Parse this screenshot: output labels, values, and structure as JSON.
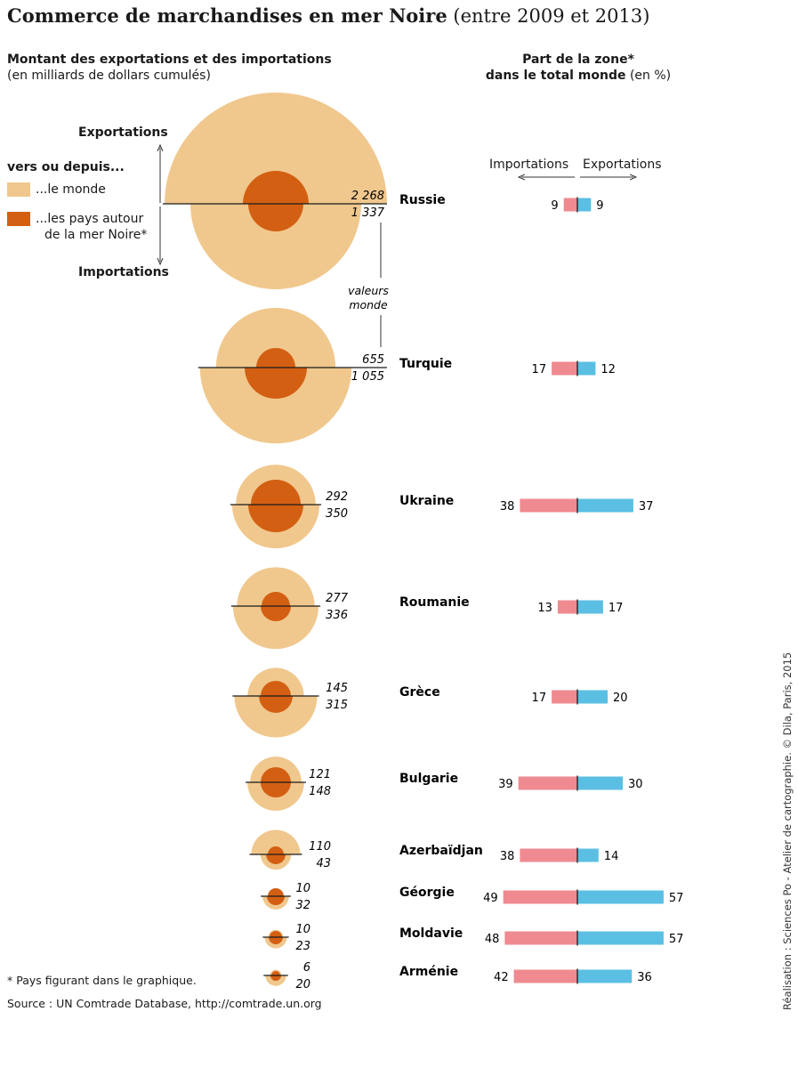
{
  "title": {
    "main": "Commerce de marchandises en mer Noire",
    "sub": "(entre 2009 et 2013)"
  },
  "left_header": {
    "line1": "Montant des exportations et des importations",
    "line2": "(en milliards de dollars cumulés)"
  },
  "right_header": {
    "line1": "Part de la zone*",
    "line2_bold": "dans le total monde",
    "line2_rest": "(en %)"
  },
  "legend": {
    "title": "vers ou depuis...",
    "world": "...le monde",
    "region_line1": "...les pays autour",
    "region_line2": "de la mer Noire*",
    "exports": "Exportations",
    "imports": "Importations",
    "world_values_line1": "valeurs",
    "world_values_line2": "monde"
  },
  "share_axis": {
    "imports": "Importations",
    "exports": "Exportations"
  },
  "colors": {
    "world": "#f0c88d",
    "region": "#d35f13",
    "imports_bar": "#ef8a90",
    "exports_bar": "#5bbfe3"
  },
  "chart_data": {
    "type": "bar",
    "categories": [
      "Russie",
      "Turquie",
      "Ukraine",
      "Roumanie",
      "Grèce",
      "Bulgarie",
      "Azerbaïdjan",
      "Géorgie",
      "Moldavie",
      "Arménie"
    ],
    "world_exports_label": [
      "2 268",
      "655",
      "292",
      "277",
      "145",
      "121",
      "110",
      "10",
      "10",
      "6"
    ],
    "world_imports_label": [
      "1 337",
      "1 055",
      "350",
      "336",
      "315",
      "148",
      "43",
      "32",
      "23",
      "20"
    ],
    "world_exports": [
      2268,
      655,
      292,
      277,
      145,
      121,
      110,
      10,
      10,
      6
    ],
    "world_imports": [
      1337,
      1055,
      350,
      336,
      315,
      148,
      43,
      32,
      23,
      20
    ],
    "series": [
      {
        "name": "Importations",
        "values": [
          9,
          17,
          38,
          13,
          17,
          39,
          38,
          49,
          48,
          42
        ]
      },
      {
        "name": "Exportations",
        "values": [
          9,
          12,
          37,
          17,
          20,
          30,
          14,
          57,
          57,
          36
        ]
      }
    ]
  },
  "footnote": "* Pays figurant dans le graphique.",
  "source": "Source : UN Comtrade Database, http://comtrade.un.org",
  "credit": "Réalisation : Sciences Po - Atelier de cartographie. © Dila, Paris, 2015"
}
